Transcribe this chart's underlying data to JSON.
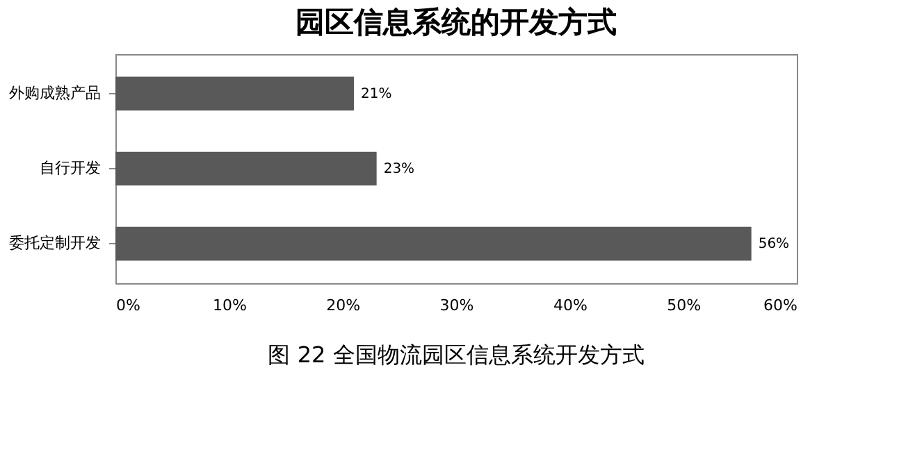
{
  "chart_data": {
    "type": "bar",
    "orientation": "horizontal",
    "title": "园区信息系统的开发方式",
    "categories": [
      "外购成熟产品",
      "自行开发",
      "委托定制开发"
    ],
    "values": [
      21,
      23,
      56
    ],
    "color": "#595959",
    "value_labels": [
      "21%",
      "23%",
      "56%"
    ],
    "xlim": [
      0,
      60
    ],
    "xticks": [
      {
        "value": 0,
        "label": "0%"
      },
      {
        "value": 10,
        "label": "10%"
      },
      {
        "value": 20,
        "label": "20%"
      },
      {
        "value": 30,
        "label": "30%"
      },
      {
        "value": 40,
        "label": "40%"
      },
      {
        "value": 50,
        "label": "50%"
      },
      {
        "value": 60,
        "label": "60%"
      }
    ],
    "grid": false,
    "annotations": [
      "图 22  全国物流园区信息系统开发方式"
    ]
  }
}
